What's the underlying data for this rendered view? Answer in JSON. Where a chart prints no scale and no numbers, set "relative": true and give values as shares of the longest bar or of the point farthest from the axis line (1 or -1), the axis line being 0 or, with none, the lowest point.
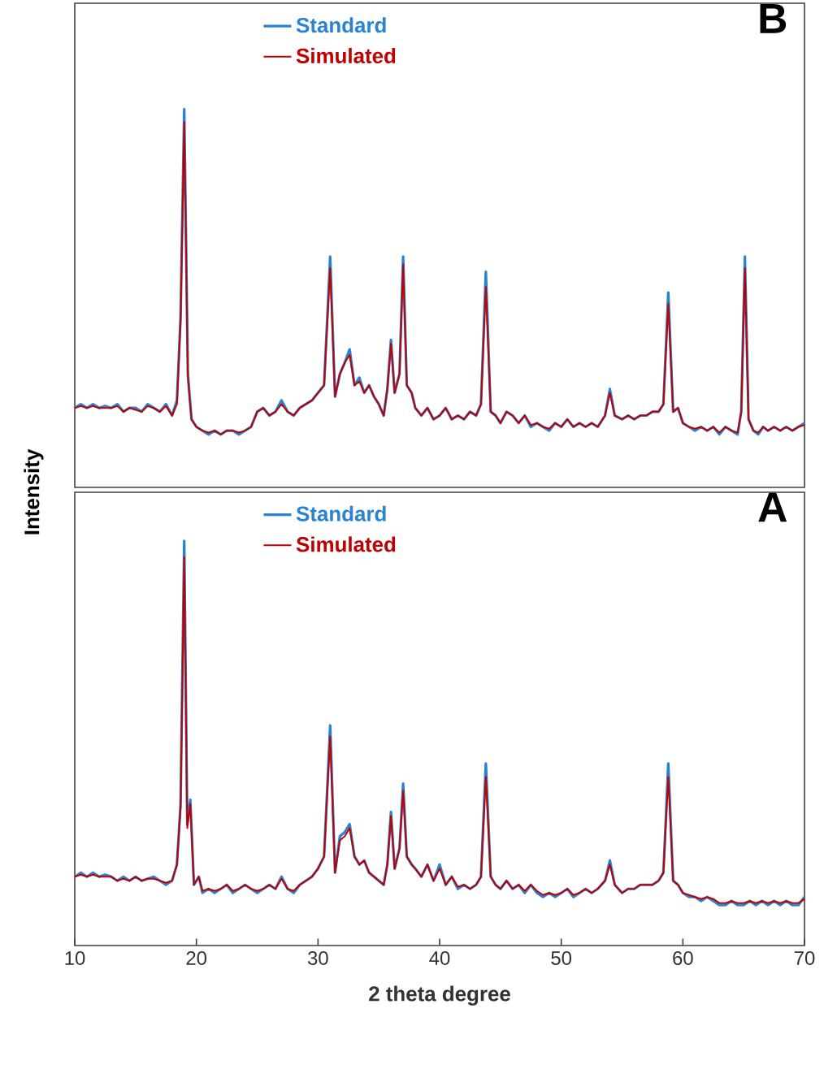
{
  "chart_data": [
    {
      "type": "line",
      "title": "B",
      "relative": true,
      "legend": "top",
      "tick_labels": false,
      "xlim": [
        10,
        70
      ],
      "x": [
        10,
        10.5,
        11,
        11.5,
        12,
        12.5,
        13,
        13.5,
        14,
        14.5,
        15,
        15.5,
        16,
        16.5,
        17,
        17.5,
        18,
        18.4,
        18.7,
        19.0,
        19.3,
        19.6,
        20,
        20.5,
        21,
        21.5,
        22,
        22.5,
        23,
        23.5,
        24,
        24.5,
        25,
        25.5,
        26,
        26.5,
        27,
        27.5,
        28,
        28.5,
        29,
        29.5,
        30,
        30.5,
        31.0,
        31.4,
        31.8,
        32.2,
        32.6,
        33,
        33.4,
        33.8,
        34.2,
        34.6,
        35,
        35.4,
        35.7,
        36.0,
        36.3,
        36.7,
        37.0,
        37.3,
        37.7,
        38,
        38.5,
        39,
        39.5,
        40,
        40.5,
        41,
        41.5,
        42,
        42.5,
        43,
        43.4,
        43.8,
        44.2,
        44.6,
        45,
        45.5,
        46,
        46.5,
        47,
        47.5,
        48,
        48.5,
        49,
        49.5,
        50,
        50.5,
        51,
        51.5,
        52,
        52.5,
        53,
        53.6,
        54.0,
        54.4,
        55,
        55.5,
        56,
        56.5,
        57,
        57.5,
        58,
        58.4,
        58.8,
        59.2,
        59.6,
        60,
        60.5,
        61,
        61.5,
        62,
        62.5,
        63,
        63.5,
        64,
        64.5,
        64.8,
        65.1,
        65.4,
        65.8,
        66.2,
        66.6,
        67,
        67.5,
        68,
        68.5,
        69,
        69.5,
        70
      ],
      "series": [
        {
          "name": "Standard",
          "color": "#2a82d2",
          "values": [
            0.21,
            0.22,
            0.21,
            0.22,
            0.21,
            0.215,
            0.21,
            0.22,
            0.2,
            0.21,
            0.21,
            0.2,
            0.22,
            0.21,
            0.2,
            0.22,
            0.19,
            0.23,
            0.45,
            1.0,
            0.3,
            0.18,
            0.16,
            0.15,
            0.14,
            0.15,
            0.14,
            0.15,
            0.15,
            0.14,
            0.15,
            0.16,
            0.2,
            0.21,
            0.19,
            0.2,
            0.23,
            0.2,
            0.19,
            0.21,
            0.22,
            0.23,
            0.25,
            0.27,
            0.61,
            0.24,
            0.3,
            0.33,
            0.365,
            0.27,
            0.29,
            0.25,
            0.27,
            0.24,
            0.22,
            0.19,
            0.26,
            0.39,
            0.25,
            0.3,
            0.61,
            0.27,
            0.25,
            0.21,
            0.19,
            0.21,
            0.18,
            0.19,
            0.21,
            0.18,
            0.19,
            0.18,
            0.2,
            0.19,
            0.22,
            0.57,
            0.2,
            0.19,
            0.17,
            0.2,
            0.19,
            0.17,
            0.19,
            0.16,
            0.17,
            0.16,
            0.15,
            0.17,
            0.16,
            0.18,
            0.16,
            0.17,
            0.16,
            0.17,
            0.16,
            0.19,
            0.26,
            0.19,
            0.18,
            0.19,
            0.18,
            0.19,
            0.19,
            0.2,
            0.2,
            0.22,
            0.515,
            0.2,
            0.21,
            0.17,
            0.16,
            0.15,
            0.16,
            0.15,
            0.16,
            0.14,
            0.16,
            0.15,
            0.14,
            0.2,
            0.61,
            0.18,
            0.15,
            0.14,
            0.16,
            0.15,
            0.16,
            0.15,
            0.16,
            0.15,
            0.16,
            0.17
          ]
        },
        {
          "name": "Simulated",
          "color": "#c00000",
          "values": [
            0.21,
            0.215,
            0.21,
            0.215,
            0.21,
            0.21,
            0.21,
            0.215,
            0.2,
            0.21,
            0.205,
            0.2,
            0.215,
            0.21,
            0.2,
            0.215,
            0.19,
            0.22,
            0.44,
            0.966,
            0.29,
            0.18,
            0.16,
            0.15,
            0.145,
            0.15,
            0.14,
            0.15,
            0.15,
            0.145,
            0.15,
            0.16,
            0.2,
            0.21,
            0.19,
            0.2,
            0.22,
            0.2,
            0.19,
            0.21,
            0.22,
            0.23,
            0.25,
            0.27,
            0.58,
            0.24,
            0.3,
            0.33,
            0.35,
            0.27,
            0.28,
            0.25,
            0.27,
            0.24,
            0.22,
            0.19,
            0.26,
            0.38,
            0.25,
            0.3,
            0.59,
            0.27,
            0.25,
            0.21,
            0.19,
            0.21,
            0.18,
            0.19,
            0.21,
            0.18,
            0.19,
            0.18,
            0.2,
            0.19,
            0.22,
            0.53,
            0.2,
            0.19,
            0.17,
            0.2,
            0.19,
            0.17,
            0.19,
            0.165,
            0.17,
            0.16,
            0.155,
            0.17,
            0.16,
            0.18,
            0.16,
            0.17,
            0.16,
            0.17,
            0.16,
            0.19,
            0.25,
            0.19,
            0.18,
            0.19,
            0.18,
            0.19,
            0.19,
            0.2,
            0.2,
            0.22,
            0.486,
            0.2,
            0.21,
            0.17,
            0.16,
            0.155,
            0.16,
            0.15,
            0.16,
            0.145,
            0.16,
            0.15,
            0.145,
            0.2,
            0.58,
            0.18,
            0.15,
            0.145,
            0.16,
            0.15,
            0.16,
            0.15,
            0.16,
            0.15,
            0.16,
            0.165
          ]
        }
      ]
    },
    {
      "type": "line",
      "title": "A",
      "relative": true,
      "legend": "top",
      "tick_labels": "x",
      "xlim": [
        10,
        70
      ],
      "xticks": [
        10,
        20,
        30,
        40,
        50,
        60,
        70
      ],
      "xlabel": "2 theta degree",
      "ylabel": "Intensity",
      "x": [
        10,
        10.5,
        11,
        11.5,
        12,
        12.5,
        13,
        13.5,
        14,
        14.5,
        15,
        15.5,
        16,
        16.5,
        17,
        17.5,
        18,
        18.4,
        18.7,
        19.0,
        19.25,
        19.5,
        19.8,
        20.2,
        20.5,
        21,
        21.5,
        22,
        22.5,
        23,
        23.5,
        24,
        24.5,
        25,
        25.5,
        26,
        26.5,
        27,
        27.5,
        28,
        28.5,
        29,
        29.5,
        30,
        30.5,
        31.0,
        31.4,
        31.8,
        32.2,
        32.6,
        33,
        33.4,
        33.8,
        34.2,
        34.6,
        35,
        35.4,
        35.7,
        36.0,
        36.3,
        36.7,
        37.0,
        37.3,
        37.7,
        38,
        38.5,
        39,
        39.5,
        40,
        40.5,
        41,
        41.5,
        42,
        42.5,
        43,
        43.4,
        43.8,
        44.2,
        44.6,
        45,
        45.5,
        46,
        46.5,
        47,
        47.5,
        48,
        48.5,
        49,
        49.5,
        50,
        50.5,
        51,
        51.5,
        52,
        52.5,
        53,
        53.6,
        54.0,
        54.4,
        55,
        55.5,
        56,
        56.5,
        57,
        57.5,
        58,
        58.4,
        58.8,
        59.2,
        59.6,
        60,
        60.5,
        61,
        61.5,
        62,
        62.5,
        63,
        63.5,
        64,
        64.5,
        65,
        65.5,
        66,
        66.5,
        67,
        67.5,
        68,
        68.5,
        69,
        69.5,
        70
      ],
      "series": [
        {
          "name": "Standard",
          "color": "#2a82d2",
          "values": [
            0.17,
            0.18,
            0.17,
            0.18,
            0.17,
            0.175,
            0.17,
            0.16,
            0.17,
            0.16,
            0.17,
            0.16,
            0.165,
            0.17,
            0.16,
            0.15,
            0.16,
            0.2,
            0.35,
            1.0,
            0.3,
            0.36,
            0.15,
            0.17,
            0.13,
            0.14,
            0.13,
            0.14,
            0.15,
            0.13,
            0.14,
            0.15,
            0.14,
            0.13,
            0.14,
            0.15,
            0.14,
            0.17,
            0.14,
            0.13,
            0.15,
            0.16,
            0.17,
            0.19,
            0.22,
            0.544,
            0.18,
            0.27,
            0.28,
            0.3,
            0.22,
            0.2,
            0.21,
            0.18,
            0.17,
            0.16,
            0.15,
            0.2,
            0.33,
            0.19,
            0.24,
            0.4,
            0.22,
            0.2,
            0.19,
            0.17,
            0.2,
            0.16,
            0.2,
            0.15,
            0.17,
            0.14,
            0.15,
            0.14,
            0.15,
            0.17,
            0.45,
            0.17,
            0.15,
            0.14,
            0.16,
            0.14,
            0.15,
            0.13,
            0.15,
            0.13,
            0.12,
            0.13,
            0.12,
            0.13,
            0.14,
            0.12,
            0.13,
            0.14,
            0.13,
            0.14,
            0.16,
            0.21,
            0.15,
            0.13,
            0.14,
            0.14,
            0.15,
            0.15,
            0.15,
            0.16,
            0.18,
            0.45,
            0.16,
            0.15,
            0.13,
            0.12,
            0.12,
            0.11,
            0.12,
            0.11,
            0.1,
            0.1,
            0.11,
            0.1,
            0.1,
            0.11,
            0.1,
            0.11,
            0.1,
            0.11,
            0.1,
            0.11,
            0.1,
            0.1,
            0.12
          ]
        },
        {
          "name": "Simulated",
          "color": "#c00000",
          "values": [
            0.17,
            0.175,
            0.17,
            0.175,
            0.17,
            0.17,
            0.17,
            0.16,
            0.165,
            0.16,
            0.17,
            0.16,
            0.165,
            0.165,
            0.16,
            0.155,
            0.16,
            0.2,
            0.34,
            0.96,
            0.29,
            0.35,
            0.15,
            0.17,
            0.135,
            0.14,
            0.135,
            0.14,
            0.15,
            0.135,
            0.14,
            0.15,
            0.14,
            0.135,
            0.14,
            0.15,
            0.14,
            0.165,
            0.14,
            0.135,
            0.15,
            0.16,
            0.17,
            0.19,
            0.22,
            0.517,
            0.18,
            0.26,
            0.27,
            0.29,
            0.22,
            0.2,
            0.21,
            0.18,
            0.17,
            0.16,
            0.15,
            0.2,
            0.32,
            0.19,
            0.24,
            0.383,
            0.22,
            0.2,
            0.19,
            0.17,
            0.2,
            0.16,
            0.19,
            0.15,
            0.17,
            0.145,
            0.15,
            0.14,
            0.15,
            0.17,
            0.417,
            0.17,
            0.15,
            0.14,
            0.16,
            0.14,
            0.15,
            0.135,
            0.15,
            0.135,
            0.125,
            0.13,
            0.125,
            0.13,
            0.14,
            0.125,
            0.13,
            0.14,
            0.13,
            0.14,
            0.16,
            0.2,
            0.15,
            0.13,
            0.14,
            0.14,
            0.15,
            0.15,
            0.15,
            0.16,
            0.18,
            0.417,
            0.16,
            0.15,
            0.13,
            0.125,
            0.12,
            0.115,
            0.12,
            0.115,
            0.105,
            0.105,
            0.11,
            0.105,
            0.105,
            0.11,
            0.105,
            0.11,
            0.105,
            0.11,
            0.105,
            0.11,
            0.105,
            0.105,
            0.115
          ]
        }
      ]
    }
  ]
}
